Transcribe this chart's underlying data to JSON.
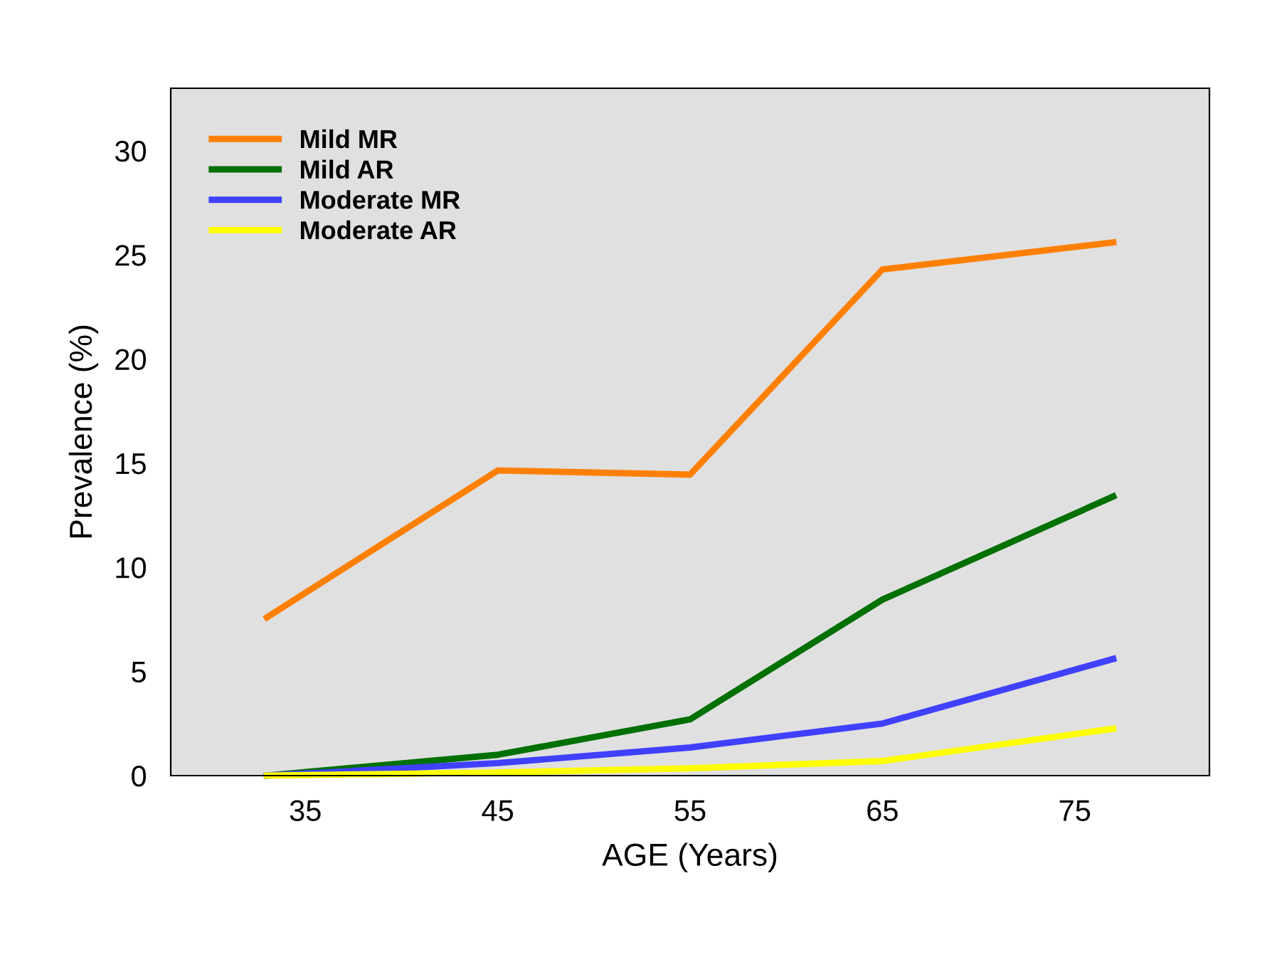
{
  "chart_data": {
    "type": "line",
    "xlabel": "AGE (Years)",
    "ylabel": "Prevalence (%)",
    "x": [
      33,
      45,
      55,
      65,
      77
    ],
    "xlim": [
      28,
      82
    ],
    "xticks": [
      35,
      45,
      55,
      65,
      75
    ],
    "ylim": [
      0,
      33
    ],
    "yticks": [
      0,
      5,
      10,
      15,
      20,
      25,
      30
    ],
    "grid": false,
    "legend": "top left",
    "marker": "none",
    "line_style": "solid",
    "series": [
      {
        "name": "Mild MR",
        "color": "#ff8000",
        "values": [
          7.6,
          14.65,
          14.45,
          24.3,
          25.6
        ]
      },
      {
        "name": "Mild AR",
        "color": "#007000",
        "values": [
          0,
          1.0,
          2.7,
          8.45,
          13.4
        ]
      },
      {
        "name": "Moderate MR",
        "color": "#4040ff",
        "values": [
          0,
          0.6,
          1.35,
          2.5,
          5.6
        ]
      },
      {
        "name": "Moderate AR",
        "color": "#ffff00",
        "values": [
          0,
          0.15,
          0.35,
          0.7,
          2.25
        ]
      }
    ]
  }
}
